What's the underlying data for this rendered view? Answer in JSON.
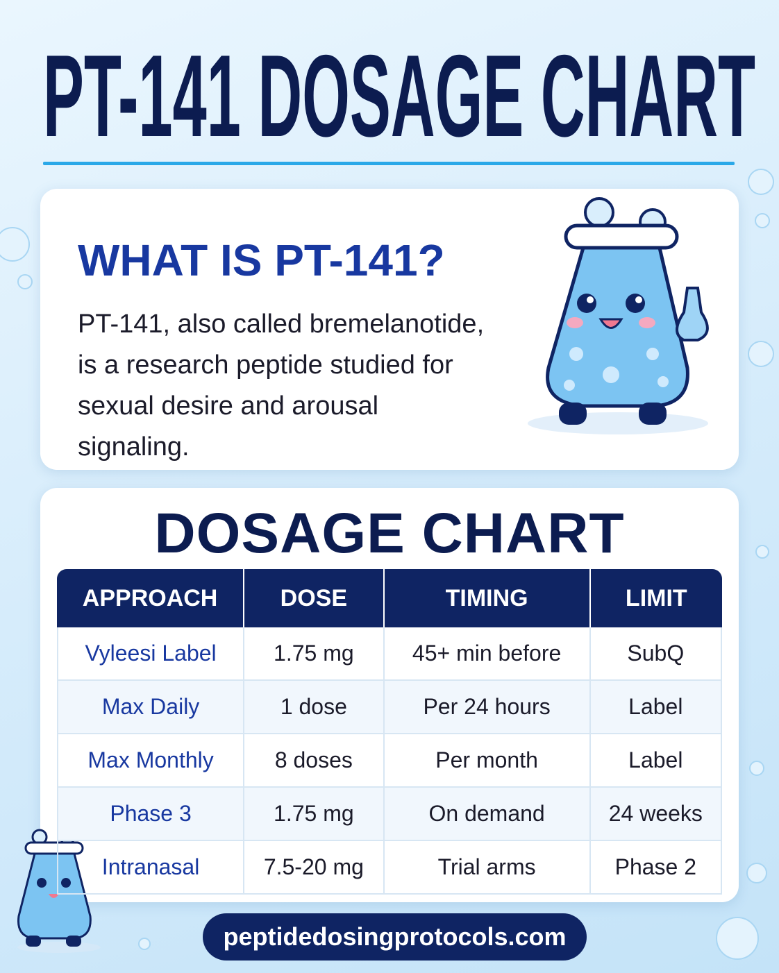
{
  "header": {
    "title": "PT-141 DOSAGE CHART"
  },
  "intro": {
    "heading": "WHAT IS PT-141?",
    "text": "PT-141, also called bremelanotide, is a research peptide studied for sexual desire and arousal signaling."
  },
  "table": {
    "title": "DOSAGE CHART",
    "columns": [
      "APPROACH",
      "DOSE",
      "TIMING",
      "LIMIT"
    ],
    "rows": [
      [
        "Vyleesi Label",
        "1.75 mg",
        "45+ min before",
        "SubQ"
      ],
      [
        "Max Daily",
        "1 dose",
        "Per 24 hours",
        "Label"
      ],
      [
        "Max Monthly",
        "8 doses",
        "Per month",
        "Label"
      ],
      [
        "Phase 3",
        "1.75 mg",
        "On demand",
        "24 weeks"
      ],
      [
        "Intranasal",
        "7.5-20 mg",
        "Trial arms",
        "Phase 2"
      ]
    ]
  },
  "footer": {
    "url": "peptidedosingprotocols.com"
  }
}
